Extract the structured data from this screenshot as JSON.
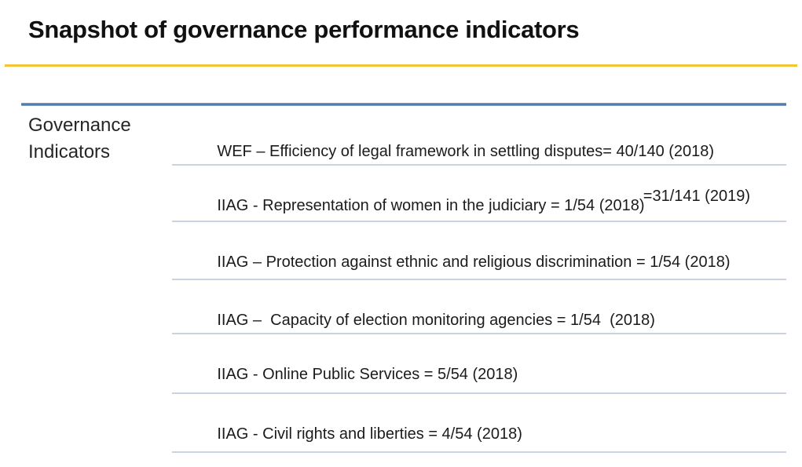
{
  "slide": {
    "title": "Snapshot of governance performance indicators"
  },
  "table": {
    "row_header": "Governance Indicators",
    "rows": [
      {
        "source": "WEF",
        "line1": "WEF – Efficiency of legal framework in settling disputes= 40/140 (2018)",
        "line2": "=31/141 (2019)"
      },
      {
        "source": "IIAG",
        "line1": "IIAG - Representation of women in the judiciary = 1/54 (2018)"
      },
      {
        "source": "IIAG",
        "line1": "IIAG – Protection against ethnic and religious discrimination = 1/54 (2018)"
      },
      {
        "source": "IIAG",
        "line1": "IIAG –  Capacity of election monitoring agencies = 1/54  (2018)"
      },
      {
        "source": "IIAG",
        "line1": "IIAG - Online Public Services = 5/54 (2018)"
      },
      {
        "source": "IIAG",
        "line1": "IIAG - Civil rights and liberties = 4/54 (2018)"
      }
    ]
  },
  "colors": {
    "accent_gold": "#F2C437",
    "table_top_rule": "#4E7CAD",
    "row_separator": "#C9D3E2",
    "text": "#1B1B1B"
  }
}
